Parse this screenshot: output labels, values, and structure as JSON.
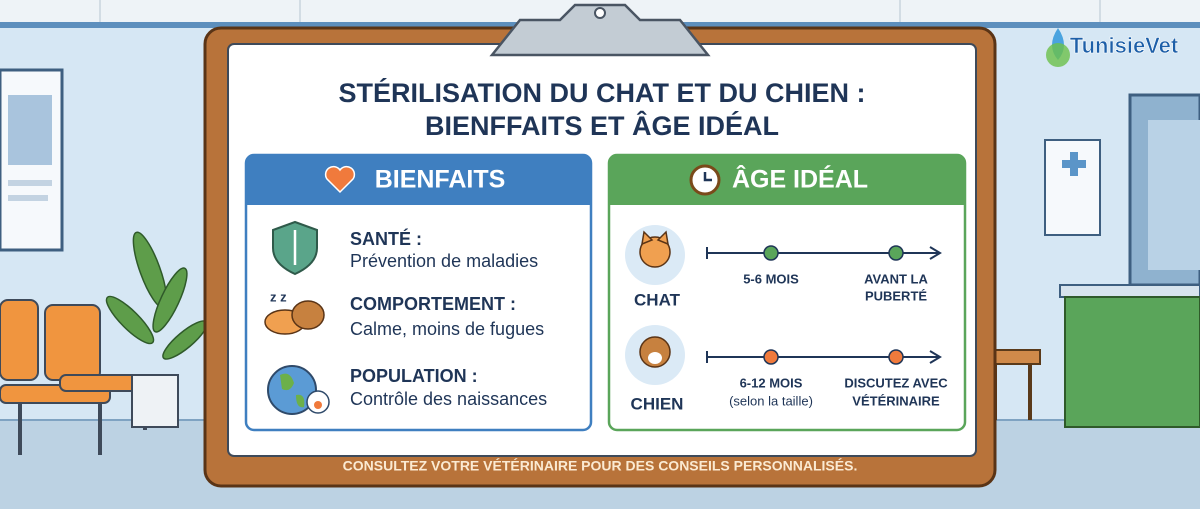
{
  "logo": "TunisieVet",
  "title": [
    "STÉRILISATION DU CHAT ET DU CHIEN :",
    "BIENFFAITS ET ÂGE IDÉAL"
  ],
  "benefits": {
    "heading": "BIENFAITS",
    "items": [
      {
        "label": "SANTÉ :",
        "text": "Prévention de maladies"
      },
      {
        "label": "COMPORTEMENT :",
        "text": "Calme, moins de fugues"
      },
      {
        "label": "POPULATION :",
        "text": "Contrôle des naissances"
      }
    ]
  },
  "ideal_age": {
    "heading": "ÂGE IDÉAL",
    "rows": [
      {
        "animal": "CHAT",
        "steps": [
          {
            "lines": [
              "5-6 MOIS"
            ]
          },
          {
            "lines": [
              "AVANT LA",
              "PUBERTÉ"
            ]
          }
        ]
      },
      {
        "animal": "CHIEN",
        "steps": [
          {
            "lines": [
              "6-12 MOIS",
              "(selon la taille)"
            ]
          },
          {
            "lines": [
              "DISCUTEZ AVEC",
              "VÉTÉRINAIRE"
            ]
          }
        ]
      }
    ]
  },
  "footer": "CONSULTEZ VOTRE VÉTÉRINAIRE POUR DES CONSEILS PERSONNALISÉS."
}
